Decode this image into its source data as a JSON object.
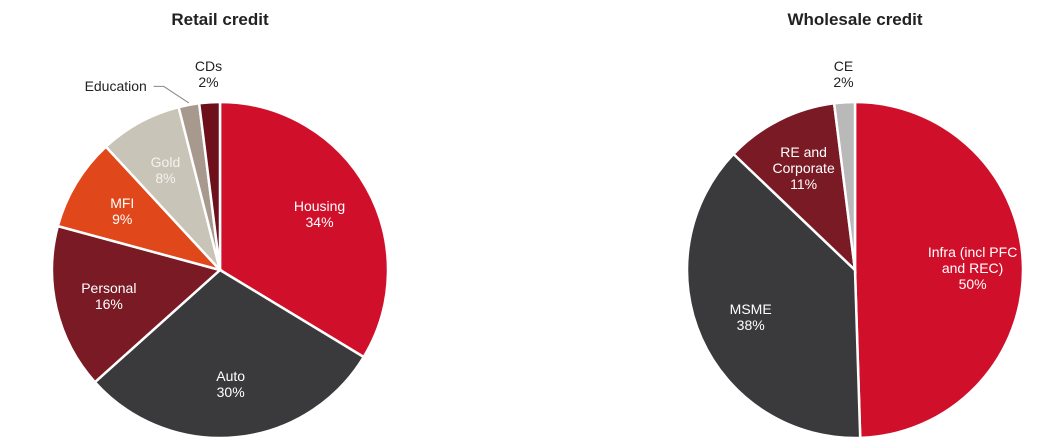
{
  "chart_data": [
    {
      "type": "pie",
      "title": "Retail credit",
      "categories": [
        "Housing",
        "Auto",
        "Personal",
        "MFI",
        "Gold",
        "Education",
        "CDs"
      ],
      "values": [
        34,
        30,
        16,
        9,
        8,
        2,
        2
      ],
      "value_labels": [
        "34%",
        "30%",
        "16%",
        "9%",
        "8%",
        null,
        "2%"
      ],
      "colors": [
        "#d0102b",
        "#3a3a3c",
        "#7a1a25",
        "#e0471a",
        "#c9c4b8",
        "#a8998e",
        "#6e0f1c"
      ]
    },
    {
      "type": "pie",
      "title": "Wholesale credit",
      "categories": [
        "Infra (incl PFC and REC)",
        "MSME",
        "RE and Corporate",
        "CE"
      ],
      "values": [
        50,
        38,
        11,
        2
      ],
      "value_labels": [
        "50%",
        "38%",
        "11%",
        "2%"
      ],
      "colors": [
        "#d0102b",
        "#3a3a3c",
        "#7a1a25",
        "#b9b9b9"
      ]
    }
  ]
}
